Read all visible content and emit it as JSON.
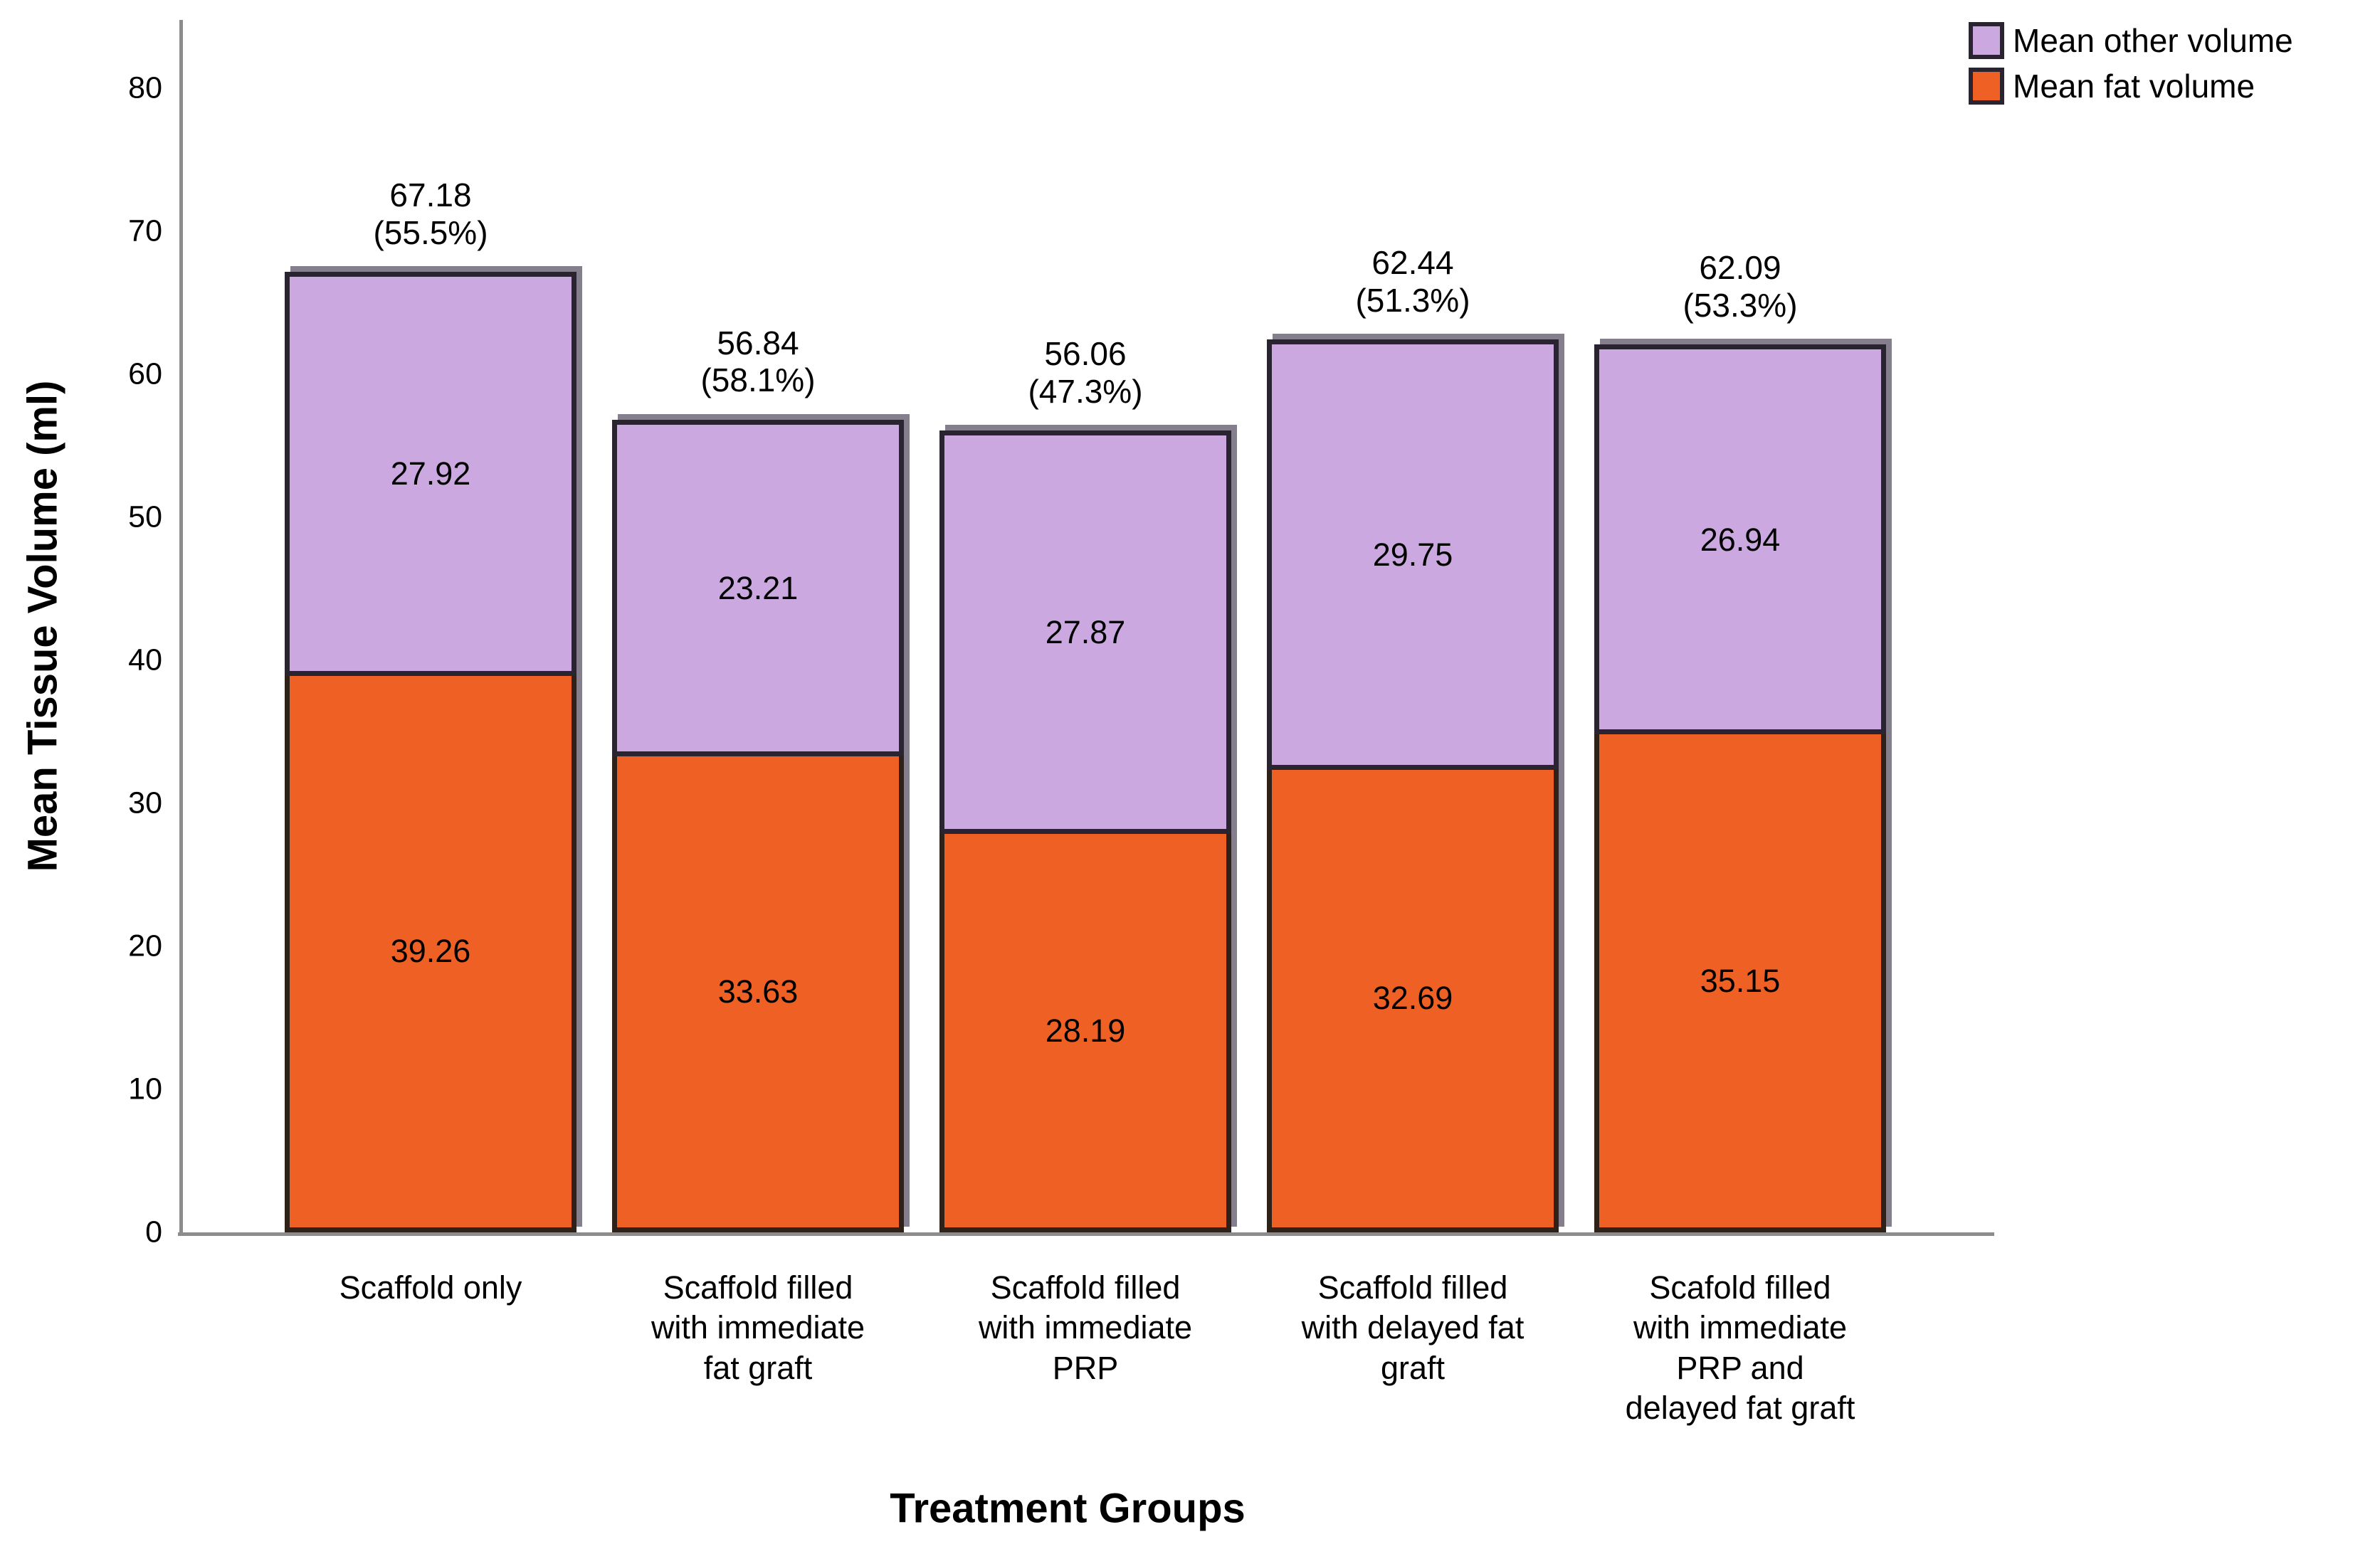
{
  "chart_data": {
    "type": "bar",
    "stacked": true,
    "title": "",
    "xlabel": "Treatment Groups",
    "ylabel": "Mean Tissue Volume (ml)",
    "ylim": [
      0,
      84
    ],
    "yticks": [
      0,
      10,
      20,
      30,
      40,
      50,
      60,
      70,
      80
    ],
    "grid": false,
    "legend_position": "top-right",
    "categories": [
      {
        "label": "Scaffold only",
        "label_lines": [
          "Scaffold only"
        ]
      },
      {
        "label": "Scaffold filled with immediate fat graft",
        "label_lines": [
          "Scaffold filled",
          "with immediate",
          "fat graft"
        ]
      },
      {
        "label": "Scaffold filled with immediate PRP",
        "label_lines": [
          "Scaffold filled",
          "with immediate",
          "PRP"
        ]
      },
      {
        "label": "Scaffold filled with delayed fat graft",
        "label_lines": [
          "Scaffold filled",
          "with delayed fat",
          "graft"
        ]
      },
      {
        "label": "Scafold filled with immediate PRP and delayed fat graft",
        "label_lines": [
          "Scafold filled",
          "with immediate",
          "PRP and",
          "delayed fat graft"
        ]
      }
    ],
    "series": [
      {
        "name": "Mean fat volume",
        "color": "#EE6024",
        "values": [
          39.26,
          33.63,
          28.19,
          32.69,
          35.15
        ]
      },
      {
        "name": "Mean other volume",
        "color": "#CBA8E0",
        "values": [
          27.92,
          23.21,
          27.87,
          29.75,
          26.94
        ]
      }
    ],
    "totals": [
      {
        "value": "67.18",
        "pct": "(55.5%)"
      },
      {
        "value": "56.84",
        "pct": "(58.1%)"
      },
      {
        "value": "56.06",
        "pct": "(47.3%)"
      },
      {
        "value": "62.44",
        "pct": "(51.3%)"
      },
      {
        "value": "62.09",
        "pct": "(53.3%)"
      }
    ],
    "legend": [
      {
        "label": "Mean other volume",
        "color": "#CBA8E0"
      },
      {
        "label": "Mean fat volume",
        "color": "#EE6024"
      }
    ],
    "colors": {
      "bar_border": "#2A2430",
      "axis_line": "#8C8C8C",
      "shadow": "#857F8D",
      "text": "#000000"
    }
  }
}
